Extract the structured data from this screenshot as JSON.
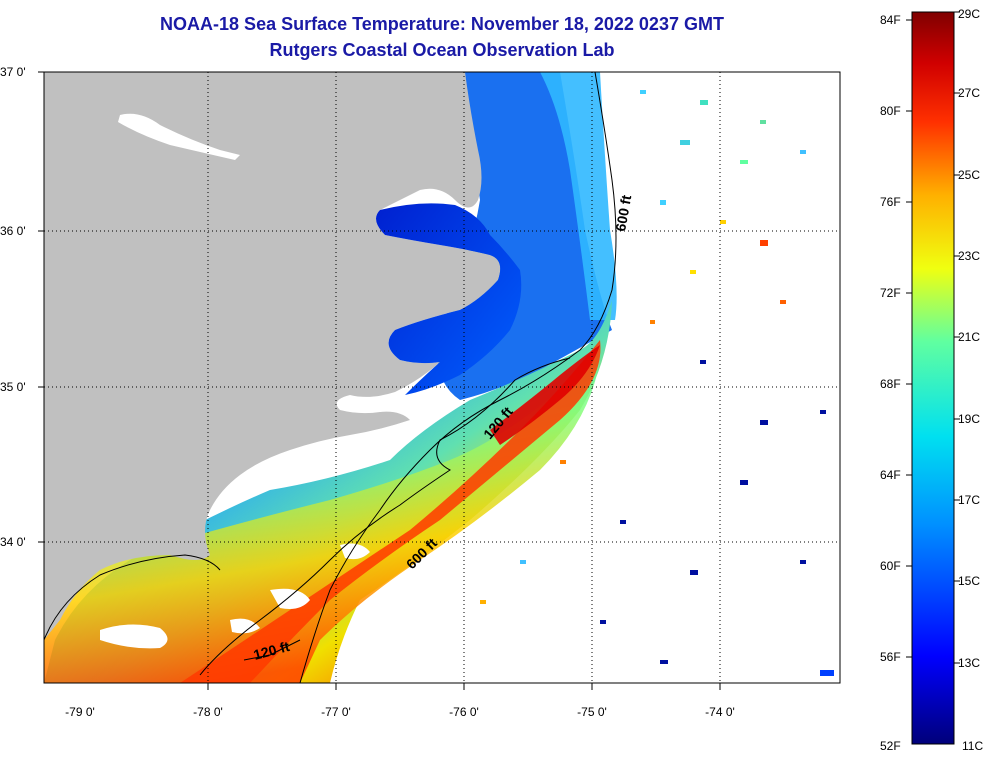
{
  "header": {
    "title": "NOAA-18 Sea Surface Temperature:  November 18, 2022 0237 GMT",
    "subtitle": "Rutgers Coastal Ocean Observation Lab"
  },
  "map": {
    "lat_labels": [
      "37 0'",
      "36 0'",
      "35 0'",
      "34 0'"
    ],
    "lon_labels": [
      "-79 0'",
      "-78 0'",
      "-77 0'",
      "-76 0'",
      "-75 0'",
      "-74 0'"
    ],
    "contours": [
      {
        "label": "600 ft"
      },
      {
        "label": "120 ft"
      },
      {
        "label": "600 ft"
      },
      {
        "label": "120 ft"
      }
    ],
    "colors": {
      "land": "#c0c0c0",
      "ocean_missing": "#ffffff"
    }
  },
  "colorbar": {
    "fahrenheit_labels": [
      "84F",
      "80F",
      "76F",
      "72F",
      "68F",
      "64F",
      "60F",
      "56F",
      "52F"
    ],
    "celsius_labels": [
      "29C",
      "27C",
      "25C",
      "23C",
      "21C",
      "19C",
      "17C",
      "15C",
      "13C",
      "11C"
    ],
    "range_celsius": [
      11,
      29
    ],
    "range_fahrenheit": [
      52,
      84
    ]
  }
}
